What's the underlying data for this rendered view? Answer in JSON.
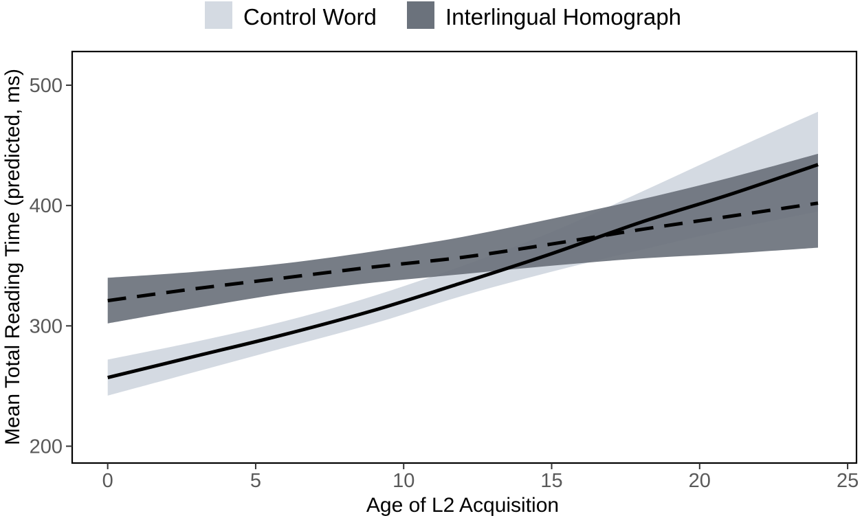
{
  "chart_data": {
    "type": "line",
    "title": "",
    "xlabel": "Age of L2 Acquisition",
    "ylabel": "Mean Total Reading Time (predicted, ms)",
    "xlim": [
      -1.2,
      25.3
    ],
    "ylim": [
      186,
      528
    ],
    "xticks": [
      0,
      5,
      10,
      15,
      20,
      25
    ],
    "yticks": [
      200,
      300,
      400,
      500
    ],
    "grid": false,
    "legend_position": "top",
    "series": [
      {
        "name": "Control Word",
        "line_style": "solid",
        "band_color": "#d4dae2",
        "x": [
          0,
          3,
          6,
          9,
          12,
          15,
          18,
          21,
          24
        ],
        "y": [
          257,
          275,
          293,
          313,
          336,
          360,
          386,
          409,
          434
        ],
        "lower": [
          242,
          262,
          282,
          302,
          325,
          345,
          363,
          380,
          395
        ],
        "upper": [
          272,
          287,
          304,
          325,
          350,
          378,
          411,
          445,
          478
        ]
      },
      {
        "name": "Interlingual Homograph",
        "line_style": "dashed",
        "band_color": "#6b727c",
        "x": [
          0,
          3,
          6,
          9,
          12,
          15,
          18,
          21,
          24
        ],
        "y": [
          321,
          331,
          340,
          349,
          357,
          368,
          380,
          391,
          402
        ],
        "lower": [
          302,
          315,
          327,
          336,
          343,
          350,
          356,
          360,
          365
        ],
        "upper": [
          340,
          345,
          352,
          362,
          374,
          389,
          405,
          423,
          443
        ]
      }
    ]
  }
}
